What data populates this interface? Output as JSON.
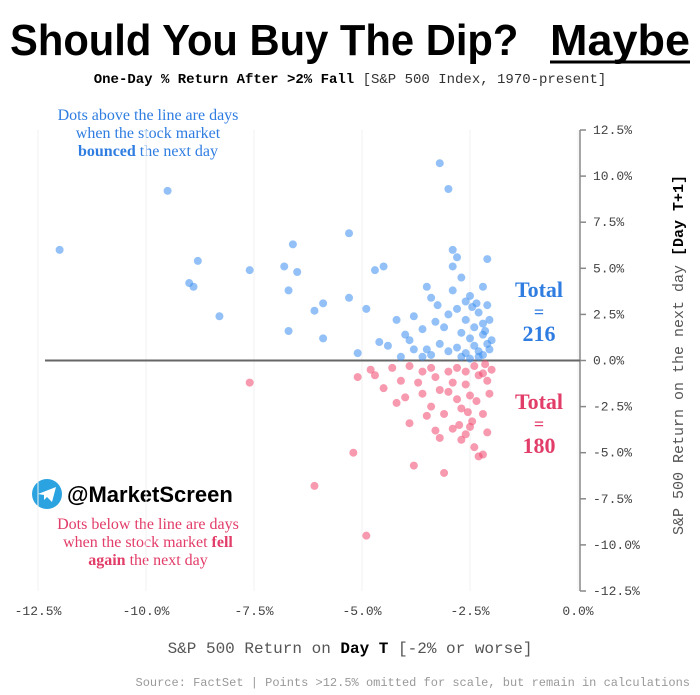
{
  "chart_data": {
    "type": "scatter",
    "title": "Should You Buy The Dip? ",
    "title_emphasis": "Maybe",
    "subtitle": "One-Day % Return After >2% Fall",
    "subtitle_note": " [S&P 500 Index, 1970-present]",
    "x_label": "S&P 500 Return on ",
    "x_label_bold": "Day T",
    "x_label_note": " [-2% or worse]",
    "y_label": "S&P 500 Return on the next day ",
    "y_label_bold": "[Day T+1]",
    "source": "Source: FactSet | Points >12.5% omitted for scale, but remain in calculations",
    "watermark": "@MarketScreen",
    "note_top": {
      "line1": "Dots above the line are days",
      "line2": "when the stock market",
      "bold": "bounced",
      "end": " the next day"
    },
    "note_bottom": {
      "line1": "Dots below the line are days",
      "line2": "when the stock market ",
      "bold1": "fell",
      "bold2": "again",
      "end": " the next day"
    },
    "total_up": {
      "label": "Total",
      "eq": "=",
      "value": 216
    },
    "total_down": {
      "label": "Total",
      "eq": "=",
      "value": 180
    },
    "xlim": [
      -12.5,
      0
    ],
    "ylim": [
      -12.5,
      12.5
    ],
    "xticks": [
      {
        "value": -12.5,
        "label": "-12.5%"
      },
      {
        "value": -10,
        "label": "-10.0%"
      },
      {
        "value": -7.5,
        "label": "-7.5%"
      },
      {
        "value": -5,
        "label": "-5.0%"
      },
      {
        "value": -2.5,
        "label": "-2.5%"
      },
      {
        "value": 0,
        "label": "0.0%"
      }
    ],
    "yticks": [
      {
        "value": 12.5,
        "label": "12.5%"
      },
      {
        "value": 10,
        "label": "10.0%"
      },
      {
        "value": 7.5,
        "label": "7.5%"
      },
      {
        "value": 5,
        "label": "5.0%"
      },
      {
        "value": 2.5,
        "label": "2.5%"
      },
      {
        "value": 0,
        "label": "0.0%"
      },
      {
        "value": -2.5,
        "label": "-2.5%"
      },
      {
        "value": -5,
        "label": "-5.0%"
      },
      {
        "value": -7.5,
        "label": "-7.5%"
      },
      {
        "value": -10,
        "label": "-10.0%"
      },
      {
        "value": -12.5,
        "label": "-12.5%"
      }
    ],
    "reference_line": 0,
    "grid": true,
    "series": [
      {
        "name": "Bounced",
        "color": "#3a8ef0",
        "x": [
          -12,
          -9.5,
          -9.0,
          -8.9,
          -8.8,
          -8.3,
          -7.6,
          -6.8,
          -6.7,
          -6.6,
          -6.5,
          -6.7,
          -6.1,
          -5.9,
          -5.9,
          -5.3,
          -5.3,
          -5.1,
          -4.9,
          -4.7,
          -4.5,
          -4.6,
          -4.2,
          -4.0,
          -3.9,
          -3.8,
          -3.6,
          -3.5,
          -3.4,
          -3.2,
          -3.0,
          -2.9,
          -2.8,
          -2.9,
          -2.7,
          -2.6,
          -2.5,
          -2.2,
          -2.1,
          -3.3,
          -3.1,
          -3.0,
          -2.8,
          -2.7,
          -2.6,
          -2.5,
          -2.4,
          -2.3,
          -2.2,
          -2.1,
          -2.05,
          -2.1,
          -2.3,
          -2.4,
          -2.6,
          -2.8,
          -3.0,
          -3.2,
          -3.4,
          -3.6,
          -4.1,
          -2.2,
          -2.05,
          -2.15,
          -2.35,
          -2.9,
          -3.5,
          -2.7,
          -2.5,
          -2.3,
          -4.4,
          -3.8,
          -2.2,
          -2.0,
          -2.45,
          -3.25
        ],
        "values": [
          6.0,
          9.2,
          4.2,
          4.0,
          5.4,
          2.4,
          4.9,
          5.1,
          3.8,
          6.3,
          4.8,
          1.6,
          2.7,
          1.2,
          3.1,
          6.9,
          3.4,
          0.4,
          2.8,
          4.9,
          5.1,
          1.0,
          2.2,
          1.4,
          1.1,
          0.6,
          1.7,
          4.0,
          3.4,
          10.7,
          9.3,
          6.0,
          5.6,
          5.1,
          4.5,
          3.2,
          3.5,
          4.0,
          5.5,
          2.1,
          1.8,
          2.5,
          2.8,
          1.5,
          2.2,
          1.2,
          1.8,
          2.6,
          1.4,
          0.9,
          2.2,
          3.0,
          0.5,
          0.8,
          0.4,
          0.7,
          0.5,
          0.9,
          0.3,
          0.2,
          0.2,
          0.3,
          0.6,
          1.6,
          3.1,
          3.8,
          0.6,
          0.2,
          0.1,
          0.2,
          0.8,
          2.4,
          2.0,
          1.1,
          2.9,
          3.0
        ]
      },
      {
        "name": "Fell",
        "color": "#f0456e",
        "x": [
          -7.6,
          -6.1,
          -5.2,
          -4.9,
          -5.1,
          -4.7,
          -4.5,
          -4.2,
          -4.0,
          -3.9,
          -3.8,
          -3.7,
          -3.5,
          -3.4,
          -3.3,
          -3.2,
          -3.1,
          -3.0,
          -2.9,
          -2.8,
          -2.7,
          -2.6,
          -2.5,
          -2.4,
          -2.3,
          -2.2,
          -2.2,
          -2.1,
          -2.1,
          -2.0,
          -2.3,
          -2.4,
          -2.5,
          -2.6,
          -2.7,
          -2.8,
          -2.9,
          -3.0,
          -3.2,
          -3.4,
          -3.6,
          -3.9,
          -4.3,
          -4.8,
          -2.15,
          -2.05,
          -2.35,
          -2.55,
          -3.1,
          -3.6,
          -2.45,
          -2.75,
          -3.3,
          -2.2,
          -2.6,
          -4.1
        ],
        "values": [
          -1.2,
          -6.8,
          -5.0,
          -9.5,
          -0.9,
          -0.8,
          -1.5,
          -2.3,
          -2.0,
          -3.4,
          -5.7,
          -1.2,
          -3.0,
          -2.5,
          -0.9,
          -4.2,
          -6.1,
          -1.7,
          -3.7,
          -2.1,
          -4.3,
          -1.3,
          -3.6,
          -4.7,
          -5.2,
          -5.1,
          -2.9,
          -3.9,
          -1.1,
          -0.5,
          -0.8,
          -0.3,
          -1.9,
          -0.6,
          -2.6,
          -0.4,
          -1.2,
          -0.6,
          -1.6,
          -0.4,
          -0.6,
          -0.3,
          -0.4,
          -0.5,
          -0.2,
          -1.8,
          -2.2,
          -2.8,
          -2.9,
          -1.8,
          -3.3,
          -3.5,
          -3.8,
          -0.7,
          -4.0,
          -1.1
        ]
      }
    ]
  }
}
